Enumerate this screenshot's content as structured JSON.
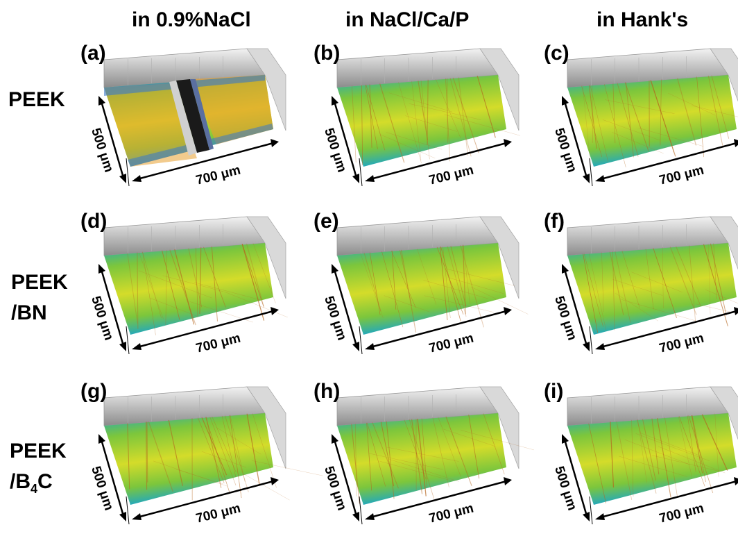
{
  "columns": [
    "in 0.9%NaCl",
    "in NaCl/Ca/P",
    "in Hank's"
  ],
  "rows": [
    {
      "main": "PEEK",
      "sub_prefix": "",
      "sub_num": "",
      "sub_suffix": ""
    },
    {
      "main": "PEEK",
      "sub_prefix": "/BN",
      "sub_num": "",
      "sub_suffix": ""
    },
    {
      "main": "PEEK",
      "sub_prefix": "/B",
      "sub_num": "4",
      "sub_suffix": "C"
    }
  ],
  "panels": [
    {
      "label": "(a)",
      "width_label": "700 μm",
      "depth_label": "500 μm",
      "surface": "worn-groove"
    },
    {
      "label": "(b)",
      "width_label": "700 μm",
      "depth_label": "500 μm",
      "surface": "green-yellow"
    },
    {
      "label": "(c)",
      "width_label": "700 μm",
      "depth_label": "500 μm",
      "surface": "green-yellow"
    },
    {
      "label": "(d)",
      "width_label": "700 μm",
      "depth_label": "500 μm",
      "surface": "green-yellow"
    },
    {
      "label": "(e)",
      "width_label": "700 μm",
      "depth_label": "500 μm",
      "surface": "green-yellow"
    },
    {
      "label": "(f)",
      "width_label": "700 μm",
      "depth_label": "500 μm",
      "surface": "green-yellow"
    },
    {
      "label": "(g)",
      "width_label": "700 μm",
      "depth_label": "500 μm",
      "surface": "green-yellow"
    },
    {
      "label": "(h)",
      "width_label": "700 μm",
      "depth_label": "500 μm",
      "surface": "green-yellow"
    },
    {
      "label": "(i)",
      "width_label": "700 μm",
      "depth_label": "500 μm",
      "surface": "green-yellow"
    }
  ],
  "colors": {
    "wall_light": "#f2f2f2",
    "wall_dark": "#8c8c8c",
    "surface_edge": "#1aa6c8",
    "surface_mid": "#7cc63c",
    "surface_center": "#d4dc2a",
    "wear_red": "#b5651d",
    "wear_orange": "#e8a030",
    "wear_blue": "#3a78c8"
  }
}
